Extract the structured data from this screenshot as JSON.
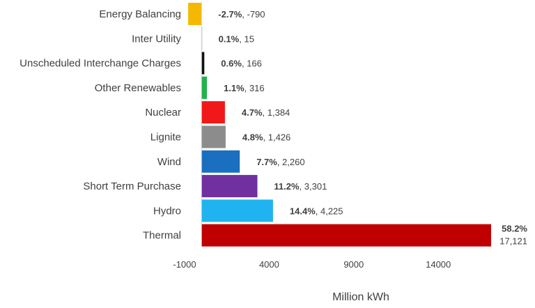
{
  "chart_data": {
    "type": "bar",
    "orientation": "horizontal",
    "categories": [
      "Energy Balancing",
      "Inter Utility",
      "Unscheduled Interchange Charges",
      "Other Renewables",
      "Nuclear",
      "Lignite",
      "Wind",
      "Short Term Purchase",
      "Hydro",
      "Thermal"
    ],
    "values": [
      -790,
      15,
      166,
      316,
      1384,
      1426,
      2260,
      3301,
      4225,
      17121
    ],
    "percents": [
      "-2.7%",
      "0.1%",
      "0.6%",
      "1.1%",
      "4.7%",
      "4.8%",
      "7.7%",
      "11.2%",
      "14.4%",
      "58.2%"
    ],
    "value_labels": [
      "-790",
      "15",
      "166",
      "316",
      "1,384",
      "1,426",
      "2,260",
      "3,301",
      "4,225",
      "17,121"
    ],
    "colors": [
      "#F5B800",
      "#DDDDDD",
      "#111111",
      "#21B24B",
      "#F01818",
      "#8C8C8C",
      "#1A6FC1",
      "#7030A0",
      "#1FB4EF",
      "#C00000"
    ],
    "xlabel": "Million kWh",
    "ylabel": "",
    "title": "",
    "xlim": [
      -1000,
      17121
    ],
    "xticks": [
      -1000,
      4000,
      9000,
      14000
    ],
    "tick_labels": [
      "-1000",
      "4000",
      "9000",
      "14000"
    ],
    "grid": false,
    "legend": "none"
  }
}
